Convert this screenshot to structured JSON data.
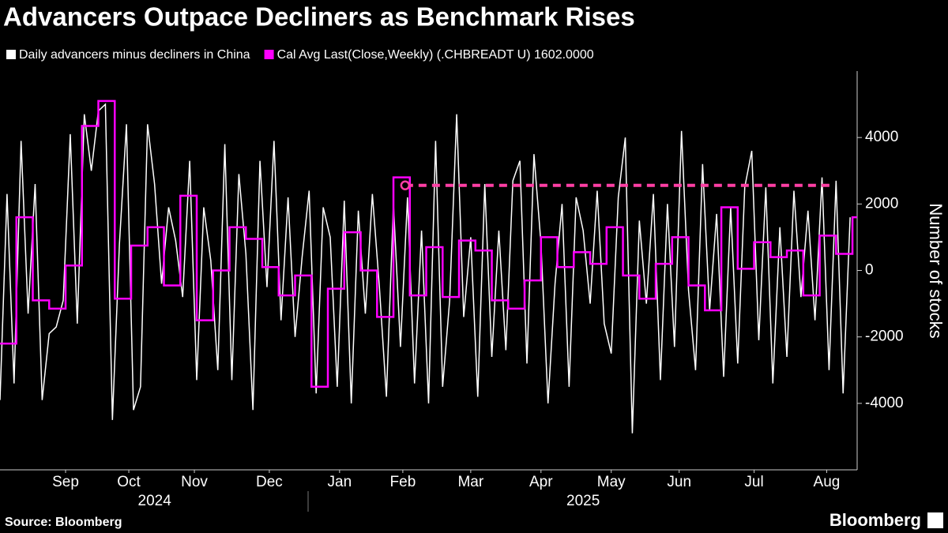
{
  "chart_data": {
    "type": "line",
    "title": "Advancers Outpace Decliners as Benchmark Rises",
    "y_label": "Number of stocks",
    "source": "Source: Bloomberg",
    "brand": "Bloomberg",
    "xlim": [
      0,
      366
    ],
    "xticks": [
      {
        "value": 28,
        "label": "Sep"
      },
      {
        "value": 55,
        "label": "Oct"
      },
      {
        "value": 83,
        "label": "Nov"
      },
      {
        "value": 115,
        "label": "Dec"
      },
      {
        "value": 145,
        "label": "Jan"
      },
      {
        "value": 172,
        "label": "Feb"
      },
      {
        "value": 201,
        "label": "Mar"
      },
      {
        "value": 231,
        "label": "Apr"
      },
      {
        "value": 261,
        "label": "May"
      },
      {
        "value": 290,
        "label": "Jun"
      },
      {
        "value": 322,
        "label": "Jul"
      },
      {
        "value": 353,
        "label": "Aug"
      }
    ],
    "year_labels": [
      {
        "value": 66,
        "label": "2024"
      },
      {
        "value": 249,
        "label": "2025"
      }
    ],
    "ylim": [
      -6000,
      6000
    ],
    "yticks": [
      -4000,
      -2000,
      0,
      2000,
      4000
    ],
    "series": [
      {
        "name": "Daily advancers minus decliners in China",
        "color": "#ffffff",
        "step": false,
        "x": [
          0,
          3,
          6,
          9,
          12,
          15,
          18,
          21,
          24,
          27,
          30,
          33,
          36,
          39,
          42,
          45,
          48,
          51,
          54,
          57,
          60,
          63,
          66,
          69,
          72,
          75,
          78,
          81,
          84,
          87,
          90,
          93,
          96,
          99,
          102,
          105,
          108,
          111,
          114,
          117,
          120,
          123,
          126,
          129,
          132,
          135,
          138,
          141,
          144,
          147,
          150,
          153,
          156,
          159,
          162,
          165,
          168,
          171,
          174,
          177,
          180,
          183,
          186,
          189,
          192,
          195,
          198,
          201,
          204,
          207,
          210,
          213,
          216,
          219,
          222,
          225,
          228,
          231,
          234,
          237,
          240,
          243,
          246,
          249,
          252,
          255,
          258,
          261,
          264,
          267,
          270,
          273,
          276,
          279,
          282,
          285,
          288,
          291,
          294,
          297,
          300,
          303,
          306,
          309,
          312,
          315,
          318,
          321,
          324,
          327,
          330,
          333,
          336,
          339,
          342,
          345,
          348,
          351,
          354,
          357,
          360,
          363
        ],
        "values": [
          -3900,
          2300,
          -3400,
          3900,
          -1300,
          2600,
          -3900,
          -1900,
          -1700,
          -900,
          4100,
          -1600,
          4700,
          3000,
          4800,
          5000,
          -4500,
          800,
          4400,
          -4200,
          -3500,
          4400,
          2600,
          -400,
          1900,
          900,
          -800,
          3300,
          -3300,
          1900,
          300,
          -3000,
          3800,
          -3300,
          2900,
          500,
          -4200,
          3300,
          -500,
          3900,
          -1500,
          2200,
          -2000,
          400,
          2400,
          -3700,
          1900,
          1000,
          -3500,
          2100,
          -4000,
          1800,
          -1300,
          2300,
          -500,
          -3800,
          2000,
          -2300,
          2200,
          -3400,
          1200,
          -4000,
          3900,
          -3500,
          -900,
          4700,
          -1400,
          1000,
          -3800,
          2600,
          -2600,
          1200,
          -2400,
          2700,
          3300,
          -2800,
          3500,
          800,
          -4000,
          -400,
          2000,
          -3500,
          2200,
          1200,
          -1000,
          2400,
          -1600,
          -2500,
          2200,
          4000,
          -4900,
          1500,
          -1000,
          2300,
          -3300,
          2000,
          -2300,
          4200,
          -600,
          -3000,
          3200,
          -1200,
          1700,
          -3200,
          1900,
          -2800,
          2500,
          3600,
          -2100,
          2500,
          -3400,
          1300,
          -2600,
          2400,
          -800,
          1800,
          -1500,
          2800,
          -3000,
          2700,
          -3700,
          1600
        ]
      },
      {
        "name": "Cal Avg Last(Close,Weekly) (.CHBREADT U) 1602.0000",
        "color": "#ff00ff",
        "step": true,
        "x": [
          0,
          7,
          14,
          21,
          28,
          35,
          42,
          49,
          56,
          63,
          70,
          77,
          84,
          91,
          98,
          105,
          112,
          119,
          126,
          133,
          140,
          147,
          154,
          161,
          168,
          175,
          182,
          189,
          196,
          203,
          210,
          217,
          224,
          231,
          238,
          245,
          252,
          259,
          266,
          273,
          280,
          287,
          294,
          301,
          308,
          315,
          322,
          329,
          336,
          343,
          350,
          357,
          364
        ],
        "values": [
          -2200,
          1600,
          -900,
          -1150,
          150,
          4350,
          5100,
          -850,
          750,
          1300,
          -450,
          2250,
          -1500,
          0,
          1300,
          950,
          100,
          -750,
          -150,
          -3500,
          -550,
          1150,
          0,
          -1400,
          2800,
          -750,
          700,
          -800,
          900,
          600,
          -900,
          -1150,
          -300,
          1000,
          100,
          550,
          200,
          1300,
          -150,
          -850,
          200,
          1000,
          -450,
          -1200,
          1900,
          50,
          850,
          400,
          600,
          -750,
          1050,
          500,
          1602
        ]
      }
    ],
    "reference_line": {
      "value": 2560,
      "x_start": 173,
      "x_end": 356,
      "color": "#ff3fa4"
    }
  }
}
